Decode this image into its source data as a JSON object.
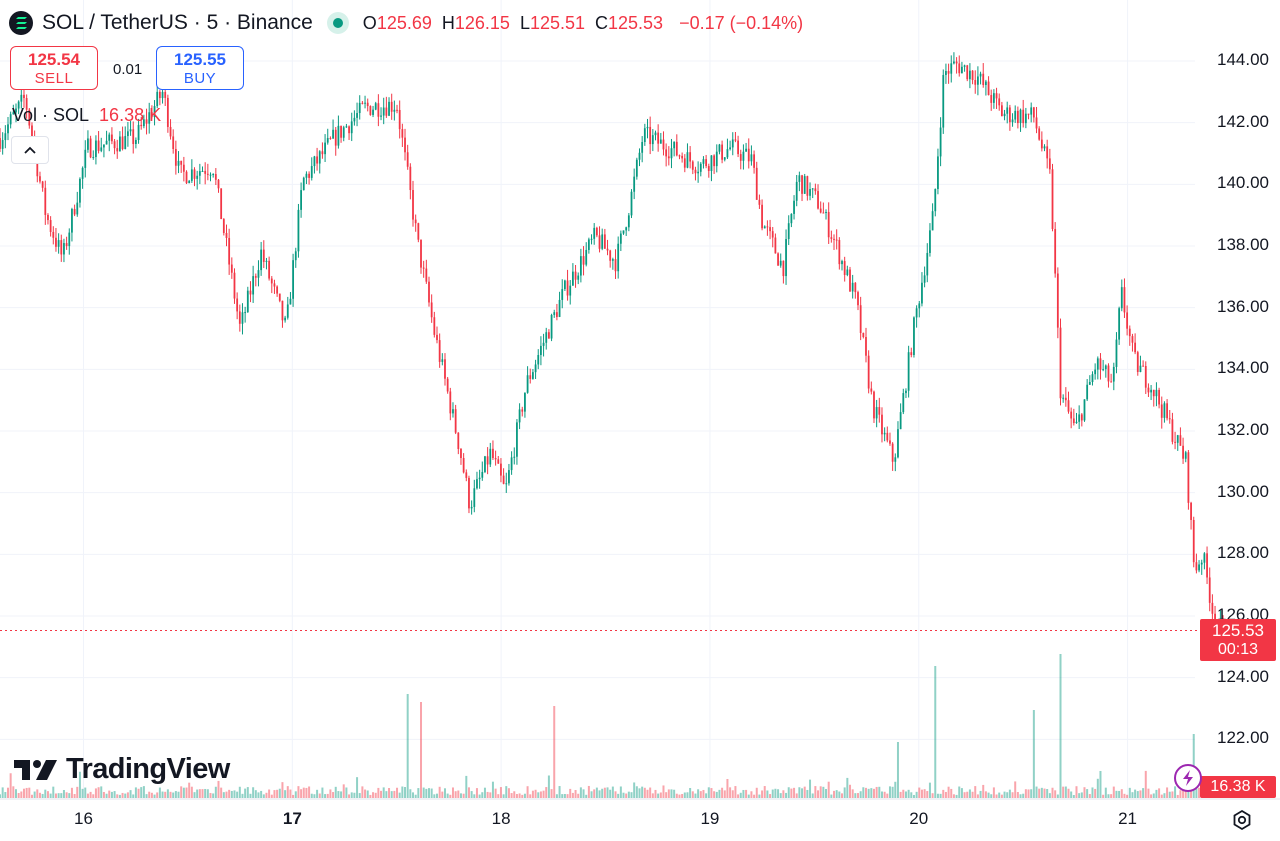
{
  "header": {
    "symbol_title": "SOL / TetherUS · 5 · Binance",
    "open_key": "O",
    "open": "125.69",
    "high_key": "H",
    "high": "126.15",
    "low_key": "L",
    "low": "125.51",
    "close_key": "C",
    "close": "125.53",
    "change": "−0.17 (−0.14%)",
    "status_color": "#089981"
  },
  "trade": {
    "sell_price": "125.54",
    "sell_label": "SELL",
    "spread": "0.01",
    "buy_price": "125.55",
    "buy_label": "BUY"
  },
  "volume_legend": {
    "label": "Vol · SOL",
    "value": "16.38 K"
  },
  "price_tag": {
    "price": "125.53",
    "countdown": "00:13"
  },
  "volume_tag": "16.38 K",
  "logo_text": "TradingView",
  "colors": {
    "up": "#089981",
    "down": "#f23645",
    "grid": "#f0f3fa",
    "buy": "#2962ff"
  },
  "icons": {
    "collapse": "chevron-up-icon",
    "settings": "gear-icon",
    "bolt": "lightning-icon",
    "symbol": "solana-logo-icon"
  },
  "chart_data": {
    "type": "candlestick",
    "interval": "5",
    "y_ticks": [
      "144.00",
      "142.00",
      "140.00",
      "138.00",
      "136.00",
      "134.00",
      "132.00",
      "130.00",
      "128.00",
      "126.00",
      "124.00",
      "122.00"
    ],
    "ylim": [
      120.8,
      145.2
    ],
    "x_ticks": [
      "16",
      "17",
      "18",
      "19",
      "20",
      "21"
    ],
    "x_tick_bold": [
      false,
      true,
      false,
      false,
      false,
      false
    ],
    "xlim": [
      15.6,
      21.73
    ],
    "grid": true,
    "last_price": 125.53,
    "price_path": [
      [
        15.6,
        141.5
      ],
      [
        15.72,
        142.8
      ],
      [
        15.82,
        139.0
      ],
      [
        15.9,
        137.6
      ],
      [
        16.02,
        141.2
      ],
      [
        16.25,
        141.5
      ],
      [
        16.38,
        143.0
      ],
      [
        16.46,
        140.3
      ],
      [
        16.62,
        140.6
      ],
      [
        16.75,
        135.3
      ],
      [
        16.85,
        137.8
      ],
      [
        16.97,
        135.3
      ],
      [
        17.05,
        140.1
      ],
      [
        17.2,
        141.5
      ],
      [
        17.35,
        142.5
      ],
      [
        17.5,
        142.6
      ],
      [
        17.6,
        138.1
      ],
      [
        17.68,
        135.2
      ],
      [
        17.8,
        131.5
      ],
      [
        17.85,
        129.6
      ],
      [
        17.95,
        131.3
      ],
      [
        18.02,
        130.0
      ],
      [
        18.12,
        133.5
      ],
      [
        18.3,
        136.5
      ],
      [
        18.45,
        138.3
      ],
      [
        18.55,
        137.5
      ],
      [
        18.62,
        139.5
      ],
      [
        18.68,
        141.6
      ],
      [
        18.8,
        141.2
      ],
      [
        18.95,
        140.6
      ],
      [
        19.1,
        141.2
      ],
      [
        19.2,
        140.8
      ],
      [
        19.25,
        138.8
      ],
      [
        19.35,
        137.3
      ],
      [
        19.42,
        140.2
      ],
      [
        19.52,
        139.4
      ],
      [
        19.6,
        138.1
      ],
      [
        19.7,
        136.2
      ],
      [
        19.78,
        132.8
      ],
      [
        19.88,
        131.0
      ],
      [
        19.98,
        135.5
      ],
      [
        20.07,
        139.0
      ],
      [
        20.12,
        143.6
      ],
      [
        20.18,
        143.9
      ],
      [
        20.28,
        143.5
      ],
      [
        20.4,
        142.3
      ],
      [
        20.55,
        142.2
      ],
      [
        20.63,
        140.2
      ],
      [
        20.68,
        133.2
      ],
      [
        20.75,
        132.0
      ],
      [
        20.85,
        134.2
      ],
      [
        20.93,
        133.5
      ],
      [
        20.97,
        136.5
      ],
      [
        21.03,
        134.3
      ],
      [
        21.12,
        133.4
      ],
      [
        21.2,
        132.2
      ],
      [
        21.28,
        131.0
      ],
      [
        21.32,
        127.5
      ],
      [
        21.36,
        128.0
      ],
      [
        21.42,
        125.7
      ],
      [
        21.47,
        125.5
      ]
    ],
    "volume_spikes": [
      [
        17.55,
        2.6
      ],
      [
        17.62,
        2.4
      ],
      [
        18.25,
        2.3
      ],
      [
        19.9,
        1.4
      ],
      [
        20.08,
        3.3
      ],
      [
        20.55,
        2.2
      ],
      [
        20.68,
        3.6
      ],
      [
        21.32,
        1.6
      ]
    ]
  }
}
